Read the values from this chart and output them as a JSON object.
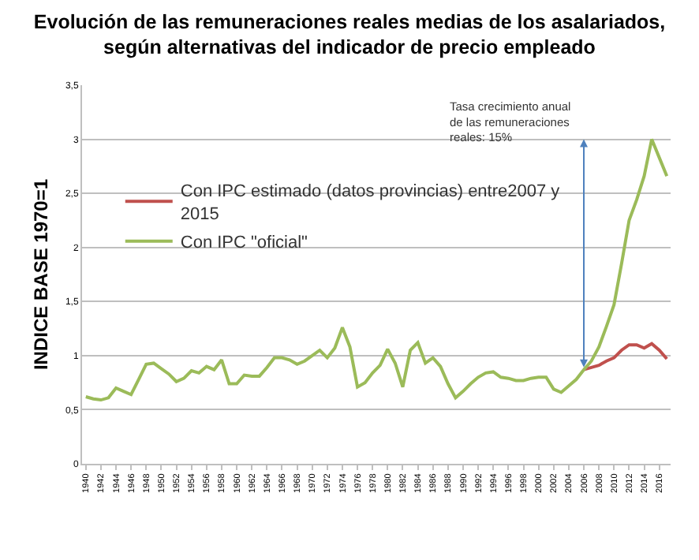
{
  "chart_data": {
    "type": "line",
    "title": "Evolución de las remuneraciones reales medias de los asalariados,\nsegún alternativas del indicador de precio empleado",
    "ylabel": "INDICE BASE 1970=1",
    "x": [
      1940,
      1941,
      1942,
      1943,
      1944,
      1945,
      1946,
      1947,
      1948,
      1949,
      1950,
      1951,
      1952,
      1953,
      1954,
      1955,
      1956,
      1957,
      1958,
      1959,
      1960,
      1961,
      1962,
      1963,
      1964,
      1965,
      1966,
      1967,
      1968,
      1969,
      1970,
      1971,
      1972,
      1973,
      1974,
      1975,
      1976,
      1977,
      1978,
      1979,
      1980,
      1981,
      1982,
      1983,
      1984,
      1985,
      1986,
      1987,
      1988,
      1989,
      1990,
      1991,
      1992,
      1993,
      1994,
      1995,
      1996,
      1997,
      1998,
      1999,
      2000,
      2001,
      2002,
      2003,
      2004,
      2005,
      2006,
      2007,
      2008,
      2009,
      2010,
      2011,
      2012,
      2013,
      2014,
      2015,
      2016,
      2017
    ],
    "series": [
      {
        "name": "Con IPC estimado (datos provincias) entre2007 y 2015",
        "color": "#c0504d",
        "x": [
          2006,
          2007,
          2008,
          2009,
          2010,
          2011,
          2012,
          2013,
          2014,
          2015,
          2016,
          2017
        ],
        "values": [
          0.87,
          0.89,
          0.91,
          0.95,
          0.98,
          1.05,
          1.1,
          1.1,
          1.07,
          1.11,
          1.05,
          0.97
        ]
      },
      {
        "name": "Con IPC \"oficial\"",
        "color": "#9bbb59",
        "values": [
          0.62,
          0.6,
          0.59,
          0.61,
          0.7,
          0.67,
          0.64,
          0.78,
          0.92,
          0.93,
          0.88,
          0.83,
          0.76,
          0.79,
          0.86,
          0.84,
          0.9,
          0.87,
          0.96,
          0.74,
          0.74,
          0.82,
          0.81,
          0.81,
          0.89,
          0.98,
          0.98,
          0.96,
          0.92,
          0.95,
          1.0,
          1.05,
          0.98,
          1.07,
          1.26,
          1.08,
          0.71,
          0.75,
          0.84,
          0.91,
          1.06,
          0.93,
          0.71,
          1.05,
          1.12,
          0.93,
          0.98,
          0.9,
          0.74,
          0.61,
          0.67,
          0.74,
          0.8,
          0.84,
          0.85,
          0.8,
          0.79,
          0.77,
          0.77,
          0.79,
          0.8,
          0.8,
          0.69,
          0.66,
          0.72,
          0.78,
          0.87,
          0.95,
          1.08,
          1.27,
          1.47,
          1.85,
          2.25,
          2.44,
          2.66,
          3.0,
          2.83,
          2.66
        ]
      }
    ],
    "annotations": [
      "Tasa crecimiento anual\nde las remuneraciones\nreales: 15%"
    ],
    "xlim": [
      1939.5,
      2017.5
    ],
    "xticks": [
      1940,
      1942,
      1944,
      1946,
      1948,
      1950,
      1952,
      1954,
      1956,
      1958,
      1960,
      1962,
      1964,
      1966,
      1968,
      1970,
      1972,
      1974,
      1976,
      1978,
      1980,
      1982,
      1984,
      1986,
      1988,
      1990,
      1992,
      1994,
      1996,
      1998,
      2000,
      2002,
      2004,
      2006,
      2008,
      2010,
      2012,
      2014,
      2016
    ],
    "ylim": [
      0,
      3.5
    ],
    "yticks": [
      0,
      {
        "value": 0.5,
        "label": "0,5"
      },
      1,
      {
        "value": 1.5,
        "label": "1,5"
      },
      2,
      {
        "value": 2.5,
        "label": "2,5"
      },
      3,
      {
        "value": 3.5,
        "label": "3,5"
      }
    ],
    "grid": "y",
    "legend": "top left",
    "marker": "none",
    "line_style": "solid"
  }
}
